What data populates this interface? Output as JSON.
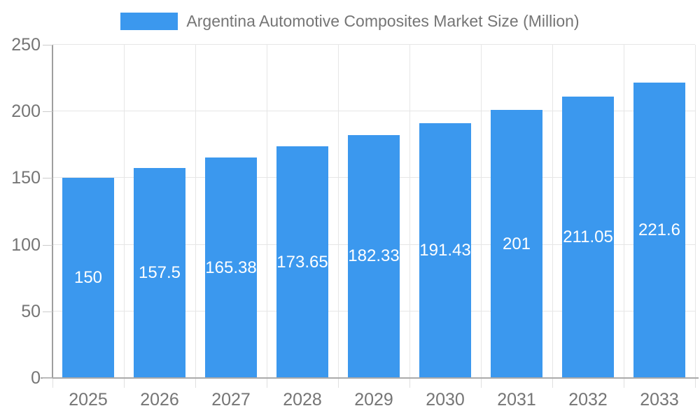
{
  "chart_data": {
    "type": "bar",
    "title": "Argentina Automotive Composites Market Size (Million)",
    "categories": [
      "2025",
      "2026",
      "2027",
      "2028",
      "2029",
      "2030",
      "2031",
      "2032",
      "2033"
    ],
    "values": [
      150,
      157.5,
      165.38,
      173.65,
      182.33,
      191.43,
      201,
      211.05,
      221.6
    ],
    "labels": [
      "150",
      "157.5",
      "165.38",
      "173.65",
      "182.33",
      "191.43",
      "201",
      "211.05",
      "221.6"
    ],
    "xlabel": "",
    "ylabel": "",
    "ylim": [
      0,
      250
    ],
    "ytick_values": [
      0,
      50,
      100,
      150,
      200,
      250
    ],
    "ytick_labels": [
      "0",
      "50",
      "100",
      "150",
      "200",
      "250"
    ],
    "grid": true,
    "legend_position": "top"
  },
  "colors": {
    "bar": "#3B98EE",
    "bar_label_text": "#ffffff",
    "axis_text": "#757575",
    "title_text": "#757575",
    "grid_line": "#e6e6e6",
    "axis_line": "#9e9e9e",
    "background": "#ffffff"
  }
}
